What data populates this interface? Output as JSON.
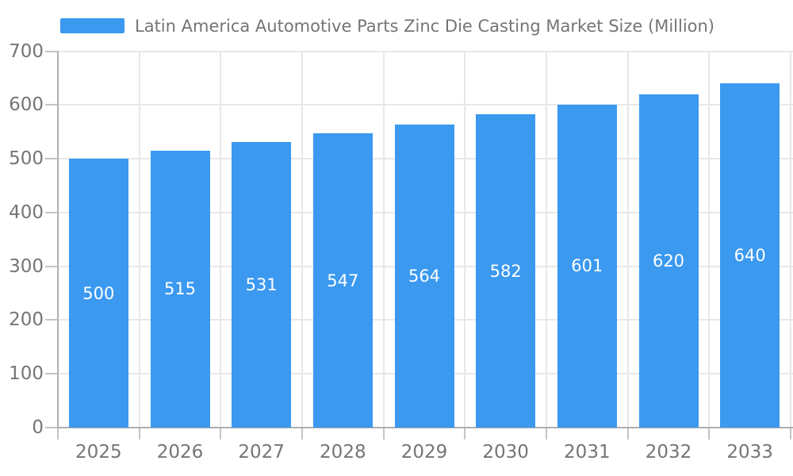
{
  "chart_data": {
    "type": "bar",
    "title": "Latin America Automotive Parts Zinc Die Casting Market Size (Million)",
    "categories": [
      "2025",
      "2026",
      "2027",
      "2028",
      "2029",
      "2030",
      "2031",
      "2032",
      "2033"
    ],
    "values": [
      500,
      515,
      531,
      547,
      564,
      582,
      601,
      620,
      640
    ],
    "xlabel": "",
    "ylabel": "",
    "ylim": [
      0,
      700
    ],
    "ytick_interval": 100,
    "grid": true,
    "legend_position": "top-left",
    "value_label_position": "inside-center",
    "bar_color": "#3B99F0"
  },
  "colors": {
    "bar": "#3B99F0",
    "axis_line": "#b0b0b0",
    "tick": "#c4c4c4",
    "grid": "#e8e8e8",
    "label_text": "#757575",
    "value_label_text": "#ffffff",
    "background": "#ffffff"
  }
}
